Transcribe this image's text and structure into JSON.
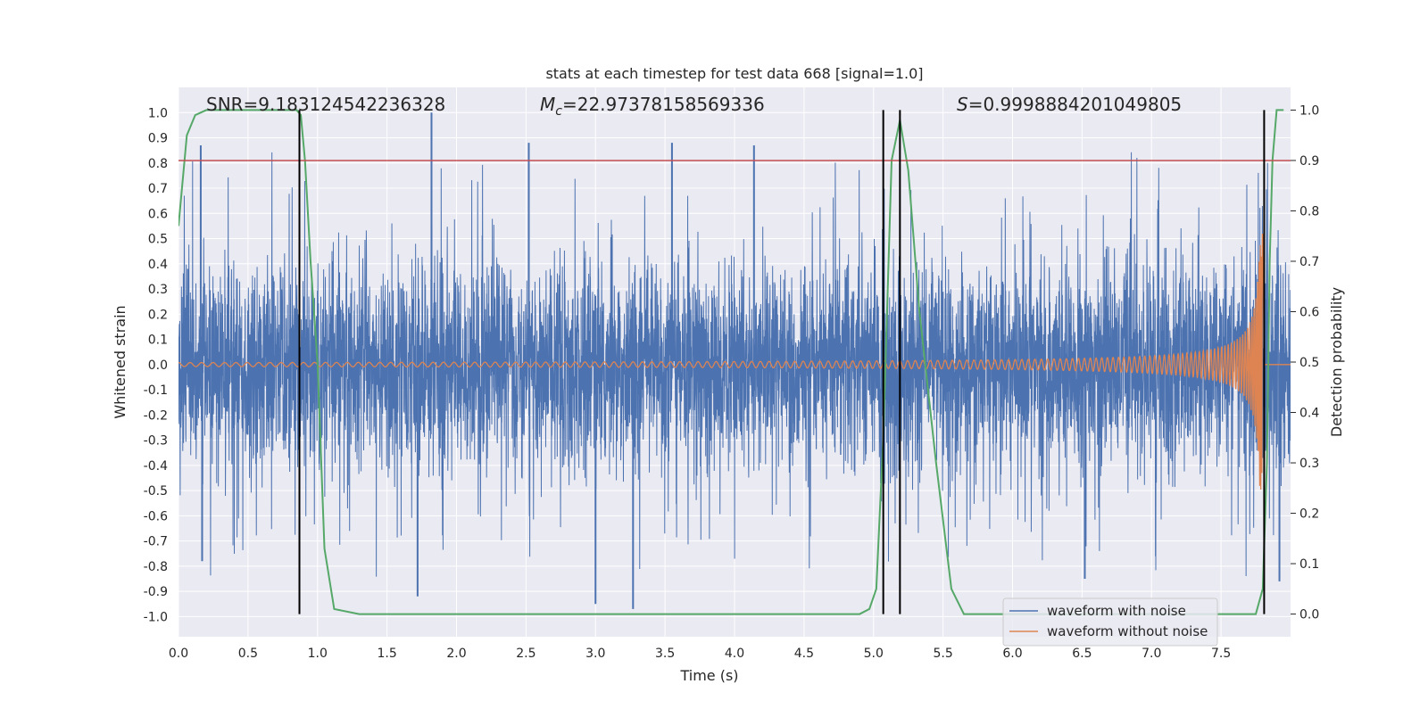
{
  "chart_data": {
    "type": "line",
    "title": "stats at each timestep for test data 668 [signal=1.0]",
    "xlabel": "Time (s)",
    "ylabel": "Whitened strain",
    "y2label": "Detection probability",
    "xlim": [
      0.0,
      8.0
    ],
    "ylim": [
      -1.08,
      1.1
    ],
    "y2lim": [
      -0.045,
      1.045
    ],
    "xticks": [
      "0.0",
      "0.5",
      "1.0",
      "1.5",
      "2.0",
      "2.5",
      "3.0",
      "3.5",
      "4.0",
      "4.5",
      "5.0",
      "5.5",
      "6.0",
      "6.5",
      "7.0",
      "7.5"
    ],
    "yticks": [
      "-1.0",
      "-0.9",
      "-0.8",
      "-0.7",
      "-0.6",
      "-0.5",
      "-0.4",
      "-0.3",
      "-0.2",
      "-0.1",
      "0.0",
      "0.1",
      "0.2",
      "0.3",
      "0.4",
      "0.5",
      "0.6",
      "0.7",
      "0.8",
      "0.9",
      "1.0"
    ],
    "y2ticks": [
      "0.0",
      "0.1",
      "0.2",
      "0.3",
      "0.4",
      "0.5",
      "0.6",
      "0.7",
      "0.8",
      "0.9",
      "1.0"
    ],
    "annotations": {
      "snr": "SNR=9.183124542236328",
      "mc_symbol": "M",
      "mc_sub": "c",
      "mc_value": "=22.97378158569336",
      "s_symbol": "S",
      "s_value": "=0.9998884201049805"
    },
    "threshold": {
      "value": 0.9,
      "axis": "right",
      "color": "#c44e52"
    },
    "vertical_markers": [
      0.87,
      5.07,
      5.19,
      7.81
    ],
    "series": [
      {
        "name": "waveform with noise",
        "color": "#4c72b0",
        "axis": "left",
        "kind": "noise",
        "band_mean": 0.0,
        "band_sd": 0.2,
        "max_abs": 1.0,
        "notable_peaks": [
          {
            "x": 0.16,
            "y": 0.87
          },
          {
            "x": 1.82,
            "y": 1.0
          },
          {
            "x": 2.52,
            "y": 0.88
          },
          {
            "x": 3.55,
            "y": 0.88
          },
          {
            "x": 4.14,
            "y": 0.87
          },
          {
            "x": 3.27,
            "y": -0.97
          },
          {
            "x": 3.0,
            "y": -0.95
          },
          {
            "x": 1.72,
            "y": -0.92
          },
          {
            "x": 0.17,
            "y": -0.78
          },
          {
            "x": 6.52,
            "y": -0.85
          },
          {
            "x": 7.92,
            "y": -0.86
          }
        ]
      },
      {
        "name": "waveform without noise",
        "color": "#dd8452",
        "axis": "left",
        "kind": "chirp",
        "t_merge": 7.8,
        "peak_amplitude": 0.52,
        "early_amplitude": 0.006
      },
      {
        "name": "detection probability",
        "color": "#55a868",
        "axis": "right",
        "x": [
          0.0,
          0.02,
          0.06,
          0.12,
          0.2,
          0.3,
          0.5,
          0.7,
          0.85,
          0.88,
          0.91,
          0.95,
          1.0,
          1.05,
          1.12,
          1.3,
          2.0,
          3.0,
          4.0,
          4.9,
          4.97,
          5.02,
          5.07,
          5.13,
          5.19,
          5.25,
          5.33,
          5.45,
          5.56,
          5.65,
          5.8,
          6.5,
          7.0,
          7.5,
          7.75,
          7.8,
          7.83,
          7.85,
          7.87,
          7.9,
          7.95
        ],
        "y": [
          0.77,
          0.83,
          0.95,
          0.99,
          1.0,
          1.0,
          1.0,
          1.0,
          1.0,
          0.99,
          0.9,
          0.7,
          0.5,
          0.13,
          0.01,
          0.0,
          0.0,
          0.0,
          0.0,
          0.0,
          0.01,
          0.05,
          0.35,
          0.9,
          0.98,
          0.88,
          0.6,
          0.3,
          0.05,
          0.0,
          0.0,
          0.0,
          0.0,
          0.0,
          0.0,
          0.05,
          0.3,
          0.7,
          0.9,
          1.0,
          1.0
        ]
      }
    ],
    "legend": {
      "placement": "lower-right",
      "entries": [
        {
          "label": "waveform with noise",
          "color": "#4c72b0"
        },
        {
          "label": "waveform without noise",
          "color": "#dd8452"
        }
      ]
    },
    "grid": true
  }
}
